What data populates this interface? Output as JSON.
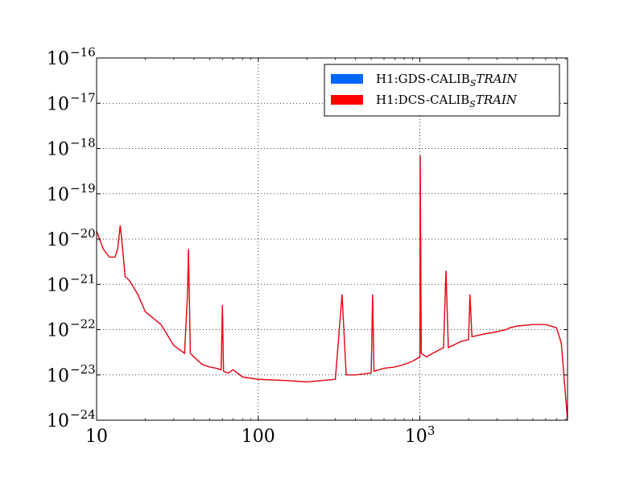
{
  "chart_data": {
    "type": "line",
    "title": "",
    "xlabel": "",
    "ylabel": "",
    "x_scale": "log",
    "y_scale": "log",
    "xlim": [
      10,
      8192
    ],
    "ylim": [
      1e-24,
      1e-16
    ],
    "grid": true,
    "legend_position": "top-right",
    "x_ticks": [
      {
        "value": 10,
        "label": "10"
      },
      {
        "value": 100,
        "label": "100"
      },
      {
        "value": 1000,
        "label": "10",
        "sup": "3"
      }
    ],
    "y_ticks": [
      {
        "value": 1e-16,
        "label": "10",
        "sup": "−16"
      },
      {
        "value": 1e-17,
        "label": "10",
        "sup": "−17"
      },
      {
        "value": 1e-18,
        "label": "10",
        "sup": "−18"
      },
      {
        "value": 1e-19,
        "label": "10",
        "sup": "−19"
      },
      {
        "value": 1e-20,
        "label": "10",
        "sup": "−20"
      },
      {
        "value": 1e-21,
        "label": "10",
        "sup": "−21"
      },
      {
        "value": 1e-22,
        "label": "10",
        "sup": "−22"
      },
      {
        "value": 1e-23,
        "label": "10",
        "sup": "−23"
      },
      {
        "value": 1e-24,
        "label": "10",
        "sup": "−24"
      }
    ],
    "series": [
      {
        "name": "H1:GDS-CALIB_STRAIN",
        "color": "#0066ff",
        "x": [
          10,
          11,
          12,
          13,
          13.5,
          14,
          14.5,
          15,
          16,
          18,
          20,
          25,
          30,
          35,
          36.5,
          37,
          37.5,
          38,
          40,
          45,
          50,
          55,
          59,
          60,
          61,
          65,
          70,
          80,
          100,
          150,
          200,
          300,
          330,
          350,
          400,
          500,
          510,
          520,
          600,
          700,
          800,
          900,
          1000,
          1005,
          1010,
          1020,
          1100,
          1200,
          1400,
          1450,
          1500,
          1600,
          1800,
          2000,
          2040,
          2100,
          2500,
          3000,
          3400,
          3600,
          4000,
          5000,
          6000,
          7000,
          7500,
          8192
        ],
        "values": [
          1.5e-20,
          6e-21,
          4e-21,
          4e-21,
          6e-21,
          2e-20,
          6e-21,
          1.5e-21,
          1.2e-21,
          6e-22,
          2.5e-22,
          1.3e-22,
          4.5e-23,
          3e-23,
          6e-22,
          6e-21,
          5e-22,
          3e-23,
          2.5e-23,
          1.7e-23,
          1.5e-23,
          1.4e-23,
          1.3e-23,
          3.5e-22,
          1.2e-23,
          1.1e-23,
          1.3e-23,
          9e-24,
          8e-24,
          7.5e-24,
          7e-24,
          8e-24,
          6e-22,
          1e-23,
          1e-23,
          1.1e-23,
          6e-22,
          1.2e-23,
          1.4e-23,
          1.5e-23,
          1.7e-23,
          2e-23,
          2.5e-23,
          7e-19,
          2e-20,
          3e-23,
          2.5e-23,
          3e-23,
          4e-23,
          2e-21,
          4e-23,
          4.5e-23,
          5.5e-23,
          6e-23,
          6e-22,
          7e-23,
          8e-23,
          9e-23,
          1e-22,
          1.1e-22,
          1.2e-22,
          1.3e-22,
          1.3e-22,
          1.1e-22,
          5e-23,
          1e-24
        ]
      },
      {
        "name": "H1:DCS-CALIB_STRAIN",
        "color": "#ff0000",
        "x": [
          10,
          11,
          12,
          13,
          13.5,
          14,
          14.5,
          15,
          16,
          18,
          20,
          25,
          30,
          35,
          36.5,
          37,
          37.5,
          38,
          40,
          45,
          50,
          55,
          59,
          60,
          61,
          65,
          70,
          80,
          100,
          150,
          200,
          300,
          330,
          350,
          400,
          500,
          510,
          520,
          600,
          700,
          800,
          900,
          1000,
          1005,
          1010,
          1020,
          1100,
          1200,
          1400,
          1450,
          1500,
          1600,
          1800,
          2000,
          2040,
          2100,
          2500,
          3000,
          3400,
          3600,
          4000,
          5000,
          6000,
          7000,
          7500,
          8192
        ],
        "values": [
          1.5e-20,
          6e-21,
          4e-21,
          4e-21,
          6e-21,
          2e-20,
          6e-21,
          1.5e-21,
          1.2e-21,
          6e-22,
          2.5e-22,
          1.3e-22,
          4.5e-23,
          3e-23,
          6e-22,
          6e-21,
          5e-22,
          3e-23,
          2.5e-23,
          1.7e-23,
          1.5e-23,
          1.4e-23,
          1.3e-23,
          3.5e-22,
          1.2e-23,
          1.1e-23,
          1.3e-23,
          9e-24,
          8e-24,
          7.5e-24,
          7e-24,
          8e-24,
          6e-22,
          1e-23,
          1e-23,
          1.1e-23,
          6e-22,
          1.2e-23,
          1.4e-23,
          1.5e-23,
          1.7e-23,
          2e-23,
          2.5e-23,
          7e-19,
          2e-20,
          3e-23,
          2.5e-23,
          3e-23,
          4e-23,
          2e-21,
          4e-23,
          4.5e-23,
          5.5e-23,
          6e-23,
          6e-22,
          7e-23,
          8e-23,
          9e-23,
          1e-22,
          1.1e-22,
          1.2e-22,
          1.3e-22,
          1.3e-22,
          1.1e-22,
          5e-23,
          1e-24
        ]
      }
    ],
    "legend": [
      {
        "prefix": "H1:GDS-CALIB",
        "sub": "S",
        "suffix": "TRAIN",
        "color": "#0066ff"
      },
      {
        "prefix": "H1:DCS-CALIB",
        "sub": "S",
        "suffix": "TRAIN",
        "color": "#ff0000"
      }
    ]
  }
}
